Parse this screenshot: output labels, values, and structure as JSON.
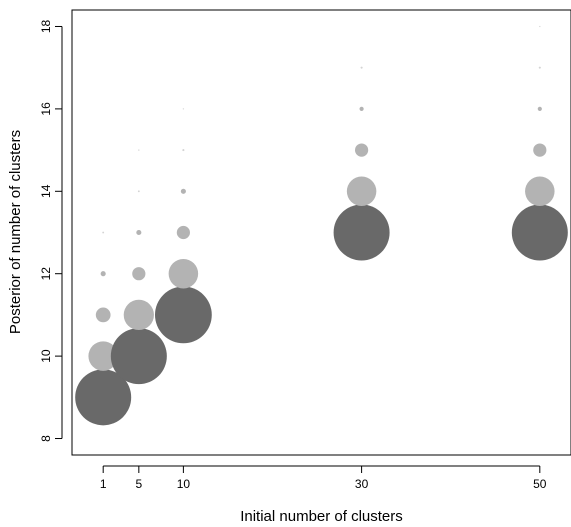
{
  "chart_data": {
    "type": "scatter",
    "subtype": "bubble",
    "title": "",
    "xlabel": "Initial number of clusters",
    "ylabel": "Posterior of number of clusters",
    "x_ticks": [
      1,
      5,
      10,
      30,
      50
    ],
    "y_ticks": [
      8,
      10,
      12,
      14,
      16,
      18
    ],
    "xlim": [
      -2.5,
      53.5
    ],
    "ylim": [
      7.6,
      18.4
    ],
    "grid": false,
    "legend": "none",
    "colors": {
      "mode": "#696969",
      "other": "#b3b3b3",
      "tail": "#d4d4d4"
    },
    "points": [
      {
        "x": 1,
        "y": 9,
        "p": 0.72,
        "mode": true
      },
      {
        "x": 1,
        "y": 10,
        "p": 0.2,
        "mode": false
      },
      {
        "x": 1,
        "y": 11,
        "p": 0.05,
        "mode": false
      },
      {
        "x": 1,
        "y": 12,
        "p": 0.006,
        "mode": false
      },
      {
        "x": 1,
        "y": 13,
        "p": 0.0008,
        "mode": false
      },
      {
        "x": 5,
        "y": 10,
        "p": 0.72,
        "mode": true
      },
      {
        "x": 5,
        "y": 11,
        "p": 0.21,
        "mode": false
      },
      {
        "x": 5,
        "y": 12,
        "p": 0.04,
        "mode": false
      },
      {
        "x": 5,
        "y": 13,
        "p": 0.006,
        "mode": false
      },
      {
        "x": 5,
        "y": 14,
        "p": 0.0008,
        "mode": false
      },
      {
        "x": 5,
        "y": 15,
        "p": 0.0004,
        "mode": false
      },
      {
        "x": 10,
        "y": 11,
        "p": 0.74,
        "mode": true
      },
      {
        "x": 10,
        "y": 12,
        "p": 0.2,
        "mode": false
      },
      {
        "x": 10,
        "y": 13,
        "p": 0.04,
        "mode": false
      },
      {
        "x": 10,
        "y": 14,
        "p": 0.006,
        "mode": false
      },
      {
        "x": 10,
        "y": 15,
        "p": 0.001,
        "mode": false
      },
      {
        "x": 10,
        "y": 16,
        "p": 0.0004,
        "mode": false
      },
      {
        "x": 30,
        "y": 13,
        "p": 0.72,
        "mode": true
      },
      {
        "x": 30,
        "y": 14,
        "p": 0.2,
        "mode": false
      },
      {
        "x": 30,
        "y": 15,
        "p": 0.04,
        "mode": false
      },
      {
        "x": 30,
        "y": 16,
        "p": 0.004,
        "mode": false
      },
      {
        "x": 30,
        "y": 17,
        "p": 0.001,
        "mode": false
      },
      {
        "x": 50,
        "y": 13,
        "p": 0.72,
        "mode": true
      },
      {
        "x": 50,
        "y": 14,
        "p": 0.2,
        "mode": false
      },
      {
        "x": 50,
        "y": 15,
        "p": 0.04,
        "mode": false
      },
      {
        "x": 50,
        "y": 16,
        "p": 0.004,
        "mode": false
      },
      {
        "x": 50,
        "y": 17,
        "p": 0.001,
        "mode": false
      },
      {
        "x": 50,
        "y": 18,
        "p": 0.0004,
        "mode": false
      }
    ]
  }
}
